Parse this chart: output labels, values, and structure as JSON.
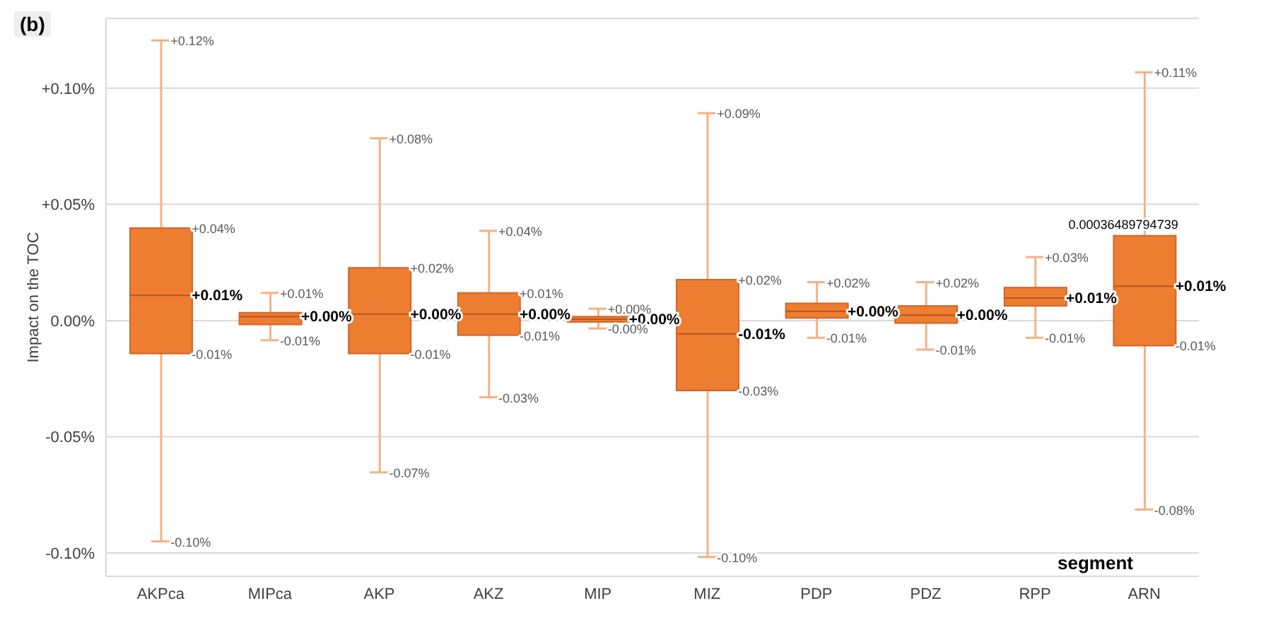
{
  "chart_data": {
    "type": "box",
    "title": "(b)",
    "xlabel": "segment",
    "ylabel": "Impact on the TOC",
    "categories": [
      "AKPca",
      "MIPca",
      "AKP",
      "AKZ",
      "MIP",
      "MIZ",
      "PDP",
      "PDZ",
      "RPP",
      "ARN"
    ],
    "color": "#ed7d31",
    "boxes": [
      {
        "low": -0.095,
        "q1": -0.0142,
        "median": 0.0108,
        "q3": 0.0398,
        "high": 0.1205
      },
      {
        "low": -0.0085,
        "q1": -0.0017,
        "median": 0.0017,
        "q3": 0.0034,
        "high": 0.0119
      },
      {
        "low": -0.0653,
        "q1": -0.0142,
        "median": 0.0028,
        "q3": 0.0227,
        "high": 0.0784
      },
      {
        "low": -0.033,
        "q1": -0.0063,
        "median": 0.0028,
        "q3": 0.0119,
        "high": 0.0386
      },
      {
        "low": -0.0034,
        "q1": -0.0006,
        "median": 0.0006,
        "q3": 0.0017,
        "high": 0.0051
      },
      {
        "low": -0.1017,
        "q1": -0.0301,
        "median": -0.0057,
        "q3": 0.0176,
        "high": 0.0892
      },
      {
        "low": -0.0074,
        "q1": 0.0011,
        "median": 0.004,
        "q3": 0.0074,
        "high": 0.0165
      },
      {
        "low": -0.0125,
        "q1": -0.0011,
        "median": 0.0023,
        "q3": 0.0063,
        "high": 0.0165
      },
      {
        "low": -0.0074,
        "q1": 0.0063,
        "median": 0.0097,
        "q3": 0.0142,
        "high": 0.0273
      },
      {
        "low": -0.0813,
        "q1": -0.0108,
        "median": 0.0148,
        "q3": 0.0365,
        "high": 0.1068
      }
    ],
    "ylim": [
      -0.11,
      0.13
    ],
    "yticks": [
      {
        "value": -0.1,
        "label": "-0.10%"
      },
      {
        "value": -0.05,
        "label": "-0.05%"
      },
      {
        "value": 0,
        "label": "0.00%"
      },
      {
        "value": 0.05,
        "label": "+0.05%"
      },
      {
        "value": 0.1,
        "label": "+0.10%"
      }
    ],
    "grid": "y",
    "annotations": [
      {
        "text": "+0.12%",
        "x": "AKPca",
        "y": 0.1205
      },
      {
        "text": "+0.04%",
        "x": "AKPca",
        "y": 0.0398
      },
      {
        "text": "+0.01%",
        "x": "AKPca",
        "y": 0.0108
      },
      {
        "text": "-0.01%",
        "x": "AKPca",
        "y": -0.0142
      },
      {
        "text": "-0.10%",
        "x": "AKPca",
        "y": -0.095
      },
      {
        "text": "+0.01%",
        "x": "MIPca",
        "y": 0.0119
      },
      {
        "text": "+0.00%",
        "x": "MIPca",
        "y": 0.0017
      },
      {
        "text": "-0.01%",
        "x": "MIPca",
        "y": -0.0085
      },
      {
        "text": "+0.08%",
        "x": "AKP",
        "y": 0.0784
      },
      {
        "text": "+0.02%",
        "x": "AKP",
        "y": 0.0227
      },
      {
        "text": "+0.00%",
        "x": "AKP",
        "y": 0.0028
      },
      {
        "text": "-0.01%",
        "x": "AKP",
        "y": -0.0142
      },
      {
        "text": "-0.07%",
        "x": "AKP",
        "y": -0.0653
      },
      {
        "text": "+0.04%",
        "x": "AKZ",
        "y": 0.0386
      },
      {
        "text": "+0.01%",
        "x": "AKZ",
        "y": 0.0119
      },
      {
        "text": "+0.00%",
        "x": "AKZ",
        "y": 0.0028
      },
      {
        "text": "-0.01%",
        "x": "AKZ",
        "y": -0.0063
      },
      {
        "text": "-0.03%",
        "x": "AKZ",
        "y": -0.033
      },
      {
        "text": "+0.00%",
        "x": "MIP",
        "y": 0.0051
      },
      {
        "text": "+0.00%",
        "x": "MIP",
        "y": 0.0006
      },
      {
        "text": "-0.00%",
        "x": "MIP",
        "y": -0.0034
      },
      {
        "text": "+0.09%",
        "x": "MIZ",
        "y": 0.0892
      },
      {
        "text": "+0.02%",
        "x": "MIZ",
        "y": 0.0176
      },
      {
        "text": "-0.01%",
        "x": "MIZ",
        "y": -0.0057
      },
      {
        "text": "-0.03%",
        "x": "MIZ",
        "y": -0.0301
      },
      {
        "text": "-0.10%",
        "x": "MIZ",
        "y": -0.1017
      },
      {
        "text": "+0.02%",
        "x": "PDP",
        "y": 0.0165
      },
      {
        "text": "+0.00%",
        "x": "PDP",
        "y": 0.004
      },
      {
        "text": "-0.01%",
        "x": "PDP",
        "y": -0.0074
      },
      {
        "text": "+0.02%",
        "x": "PDZ",
        "y": 0.0165
      },
      {
        "text": "+0.00%",
        "x": "PDZ",
        "y": 0.0023
      },
      {
        "text": "-0.01%",
        "x": "PDZ",
        "y": -0.0125
      },
      {
        "text": "+0.03%",
        "x": "RPP",
        "y": 0.0273
      },
      {
        "text": "+0.01%",
        "x": "RPP",
        "y": 0.0097
      },
      {
        "text": "-0.01%",
        "x": "RPP",
        "y": -0.0074
      },
      {
        "text": "+0.11%",
        "x": "ARN",
        "y": 0.1068
      },
      {
        "text": "0.00036489794739",
        "x": "ARN",
        "y": 0.0365
      },
      {
        "text": "+0.01%",
        "x": "ARN",
        "y": 0.0148
      },
      {
        "text": "-0.01%",
        "x": "ARN",
        "y": -0.0108
      },
      {
        "text": "-0.08%",
        "x": "ARN",
        "y": -0.0813
      }
    ]
  }
}
